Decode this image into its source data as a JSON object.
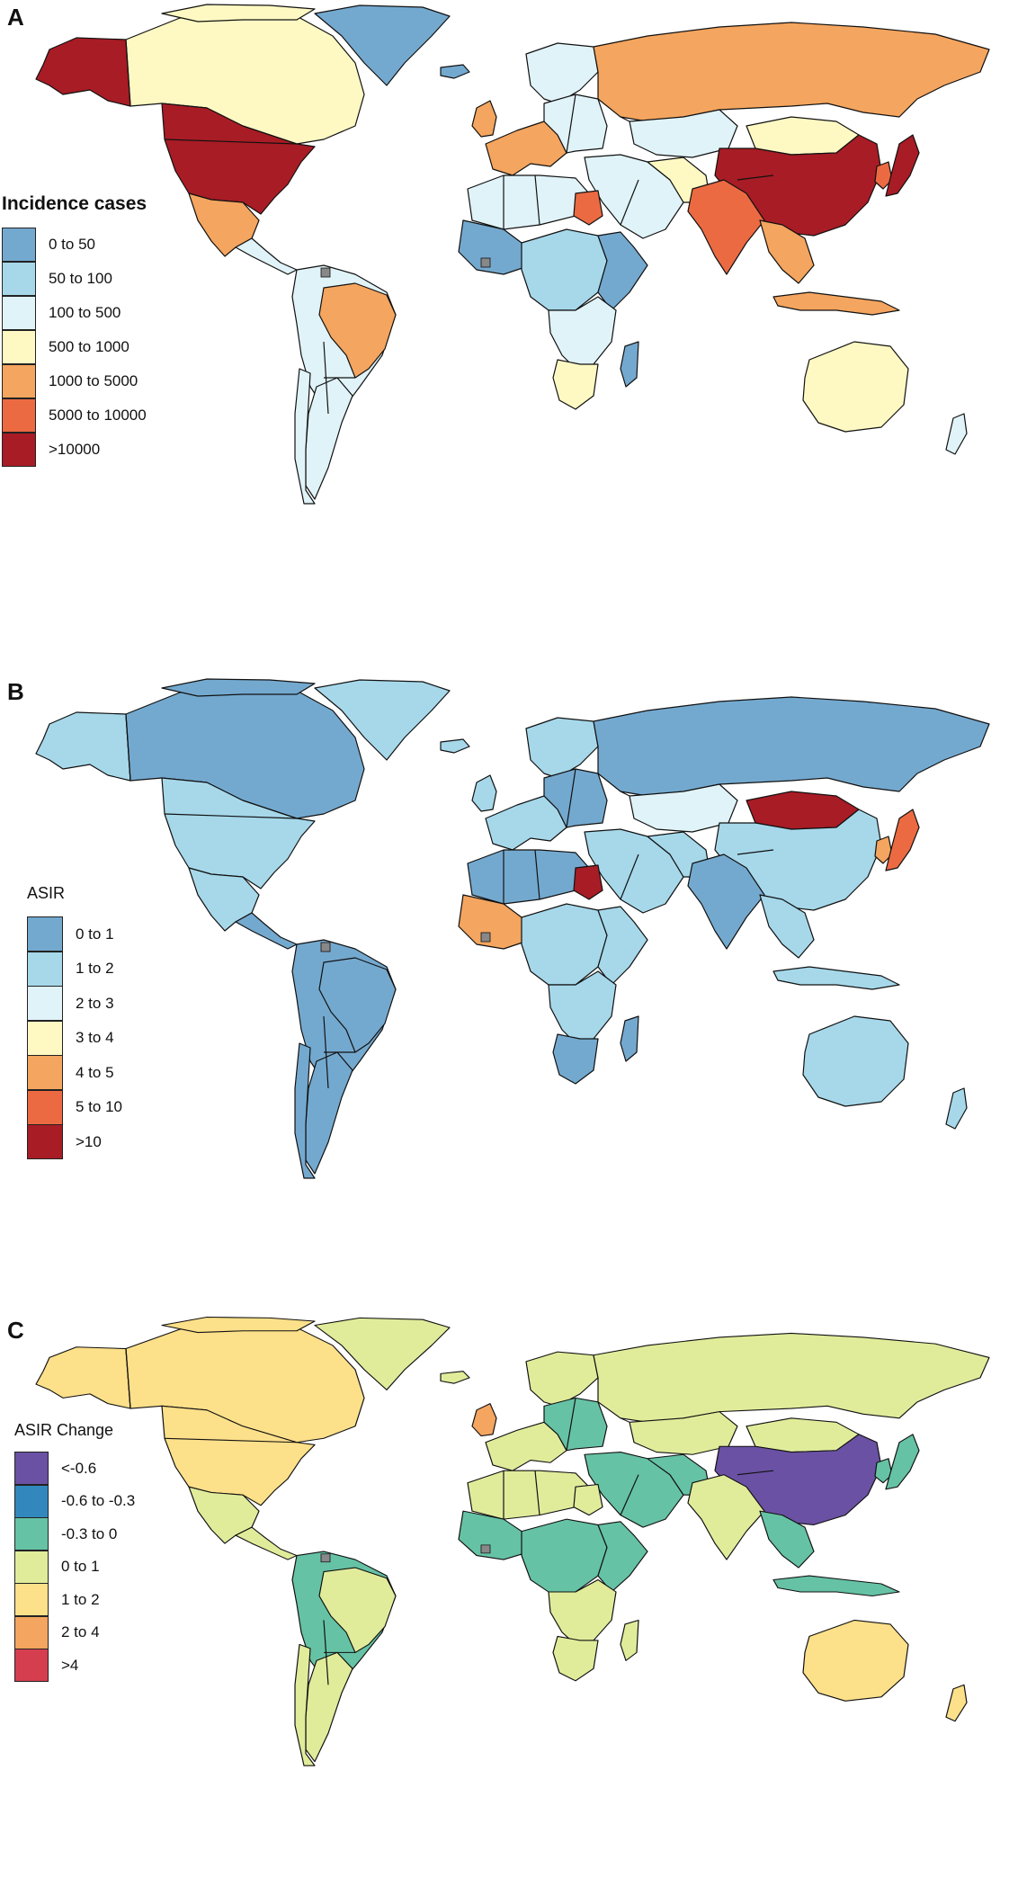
{
  "colors": {
    "A": [
      "#74a9cf",
      "#a6d8ea",
      "#e0f3f8",
      "#fef9c3",
      "#f4a55f",
      "#ec6a42",
      "#a81c25"
    ],
    "B": [
      "#74a9cf",
      "#a6d8ea",
      "#e0f3f8",
      "#fef9c3",
      "#f4a55f",
      "#ec6a42",
      "#a81c25"
    ],
    "C": [
      "#6a51a3",
      "#3288bd",
      "#66c2a5",
      "#e1ec9b",
      "#fde08a",
      "#f4a55f",
      "#d53e4f"
    ],
    "missing": "#888888"
  },
  "panels": {
    "A": {
      "letter": "A",
      "legend_title": "Incidence cases",
      "legend_labels": [
        "0 to 50",
        "50 to 100",
        "100 to 500",
        "500 to 1000",
        "1000 to 5000",
        "5000 to 10000",
        ">10000"
      ]
    },
    "B": {
      "letter": "B",
      "legend_title": "ASIR",
      "legend_labels": [
        "0 to 1",
        "1 to 2",
        "2 to 3",
        "3 to 4",
        "4 to 5",
        "5 to 10",
        ">10"
      ]
    },
    "C": {
      "letter": "C",
      "legend_title": "ASIR Change",
      "legend_labels": [
        "<-0.6",
        "-0.6 to -0.3",
        "-0.3 to 0",
        "0 to 1",
        "1 to 2",
        "2 to 4",
        ">4"
      ]
    }
  },
  "regions": {
    "A": {
      "alaska": 6,
      "canada": 3,
      "usa": 6,
      "greenland": 0,
      "arctic_islands": 3,
      "mexico": 4,
      "central_america": 2,
      "south_america": 2,
      "brazil": 4,
      "argentina": 2,
      "chile": 2,
      "iceland": 0,
      "europe_west": 4,
      "europe_east": 2,
      "scandinavia": 2,
      "uk": 4,
      "russia": 4,
      "kazakhstan": 2,
      "mongolia": 3,
      "china": 6,
      "japan": 6,
      "korea": 5,
      "middle_east": 2,
      "iran": 3,
      "india": 5,
      "southeast_asia": 4,
      "indonesia": 4,
      "north_africa": 2,
      "egypt": 5,
      "west_africa": 0,
      "central_africa": 1,
      "east_africa": 0,
      "southern_africa": 2,
      "south_africa": 3,
      "madagascar": 0,
      "australia": 3,
      "new_zealand": 2
    },
    "B": {
      "alaska": 1,
      "canada": 0,
      "usa": 1,
      "greenland": 1,
      "arctic_islands": 0,
      "mexico": 1,
      "central_america": 0,
      "south_america": 0,
      "brazil": 0,
      "argentina": 0,
      "chile": 0,
      "iceland": 1,
      "europe_west": 1,
      "europe_east": 0,
      "scandinavia": 1,
      "uk": 1,
      "russia": 0,
      "kazakhstan": 2,
      "mongolia": 6,
      "china": 1,
      "japan": 5,
      "korea": 4,
      "middle_east": 1,
      "iran": 1,
      "india": 0,
      "southeast_asia": 1,
      "indonesia": 1,
      "north_africa": 0,
      "egypt": 6,
      "west_africa": 4,
      "central_africa": 1,
      "east_africa": 1,
      "southern_africa": 1,
      "south_africa": 0,
      "madagascar": 0,
      "australia": 1,
      "new_zealand": 1
    },
    "C": {
      "alaska": 4,
      "canada": 4,
      "usa": 4,
      "greenland": 3,
      "arctic_islands": 4,
      "mexico": 3,
      "central_america": 3,
      "south_america": 2,
      "brazil": 3,
      "argentina": 3,
      "chile": 3,
      "iceland": 3,
      "europe_west": 3,
      "europe_east": 2,
      "scandinavia": 3,
      "uk": 5,
      "russia": 3,
      "kazakhstan": 3,
      "mongolia": 3,
      "china": 0,
      "japan": 2,
      "korea": 2,
      "middle_east": 2,
      "iran": 2,
      "india": 3,
      "southeast_asia": 2,
      "indonesia": 2,
      "north_africa": 3,
      "egypt": 3,
      "west_africa": 2,
      "central_africa": 2,
      "east_africa": 2,
      "southern_africa": 3,
      "south_africa": 3,
      "madagascar": 3,
      "australia": 4,
      "new_zealand": 4
    }
  }
}
